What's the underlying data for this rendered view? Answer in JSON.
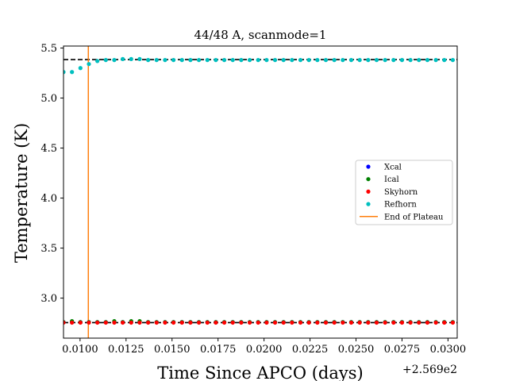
{
  "chart_data": {
    "type": "scatter",
    "title": "44/48 A, scanmode=1",
    "xlabel": "Time Since APCO (days)",
    "ylabel": "Temperature (K)",
    "x_offset_label": "+2.569e2",
    "xlim": [
      0.0091,
      0.0305
    ],
    "ylim": [
      2.6,
      5.52
    ],
    "x_ticks": [
      0.01,
      0.0125,
      0.015,
      0.0175,
      0.02,
      0.0225,
      0.025,
      0.0275,
      0.03
    ],
    "x_tick_labels": [
      "0.0100",
      "0.0125",
      "0.0150",
      "0.0175",
      "0.0200",
      "0.0225",
      "0.0250",
      "0.0275",
      "0.0300"
    ],
    "y_ticks": [
      3.0,
      3.5,
      4.0,
      4.5,
      5.0,
      5.5
    ],
    "y_tick_labels": [
      "3.0",
      "3.5",
      "4.0",
      "4.5",
      "5.0",
      "5.5"
    ],
    "grid": false,
    "legend_position": "center-right",
    "x_start": 0.0091,
    "x_step": 0.00046,
    "n_points": 47,
    "series": [
      {
        "name": "Xcal",
        "color": "#0000ff",
        "mode": "constant",
        "value": 2.76
      },
      {
        "name": "Ical",
        "color": "#008000",
        "mode": "list",
        "values": [
          2.76,
          2.77,
          2.76,
          2.76,
          2.76,
          2.76,
          2.77,
          2.76,
          2.77,
          2.77,
          2.76,
          2.76,
          2.76,
          2.76,
          2.76,
          2.76,
          2.76,
          2.76,
          2.76,
          2.76,
          2.76,
          2.76,
          2.76,
          2.76,
          2.76,
          2.76,
          2.76,
          2.76,
          2.76,
          2.76,
          2.76,
          2.76,
          2.76,
          2.76,
          2.76,
          2.76,
          2.76,
          2.76,
          2.76,
          2.76,
          2.76,
          2.76,
          2.76,
          2.76,
          2.76,
          2.76,
          2.76
        ]
      },
      {
        "name": "Skyhorn",
        "color": "#ff0000",
        "mode": "constant",
        "value": 2.755
      },
      {
        "name": "Refhorn",
        "color": "#00bfbf",
        "mode": "list",
        "values": [
          5.26,
          5.26,
          5.3,
          5.34,
          5.37,
          5.38,
          5.38,
          5.39,
          5.39,
          5.39,
          5.38,
          5.38,
          5.38,
          5.38,
          5.38,
          5.38,
          5.38,
          5.38,
          5.38,
          5.38,
          5.38,
          5.38,
          5.38,
          5.38,
          5.38,
          5.38,
          5.38,
          5.38,
          5.38,
          5.38,
          5.38,
          5.38,
          5.38,
          5.38,
          5.38,
          5.38,
          5.38,
          5.38,
          5.38,
          5.38,
          5.38,
          5.38,
          5.38,
          5.38,
          5.38,
          5.38,
          5.38
        ]
      }
    ],
    "hlines": [
      {
        "y": 5.385,
        "color": "#000000",
        "style": "dashed"
      },
      {
        "y": 2.755,
        "color": "#000000",
        "style": "dashed"
      }
    ],
    "vline": {
      "name": "End of Plateau",
      "x": 0.01045,
      "color": "#ff7f0e"
    }
  }
}
